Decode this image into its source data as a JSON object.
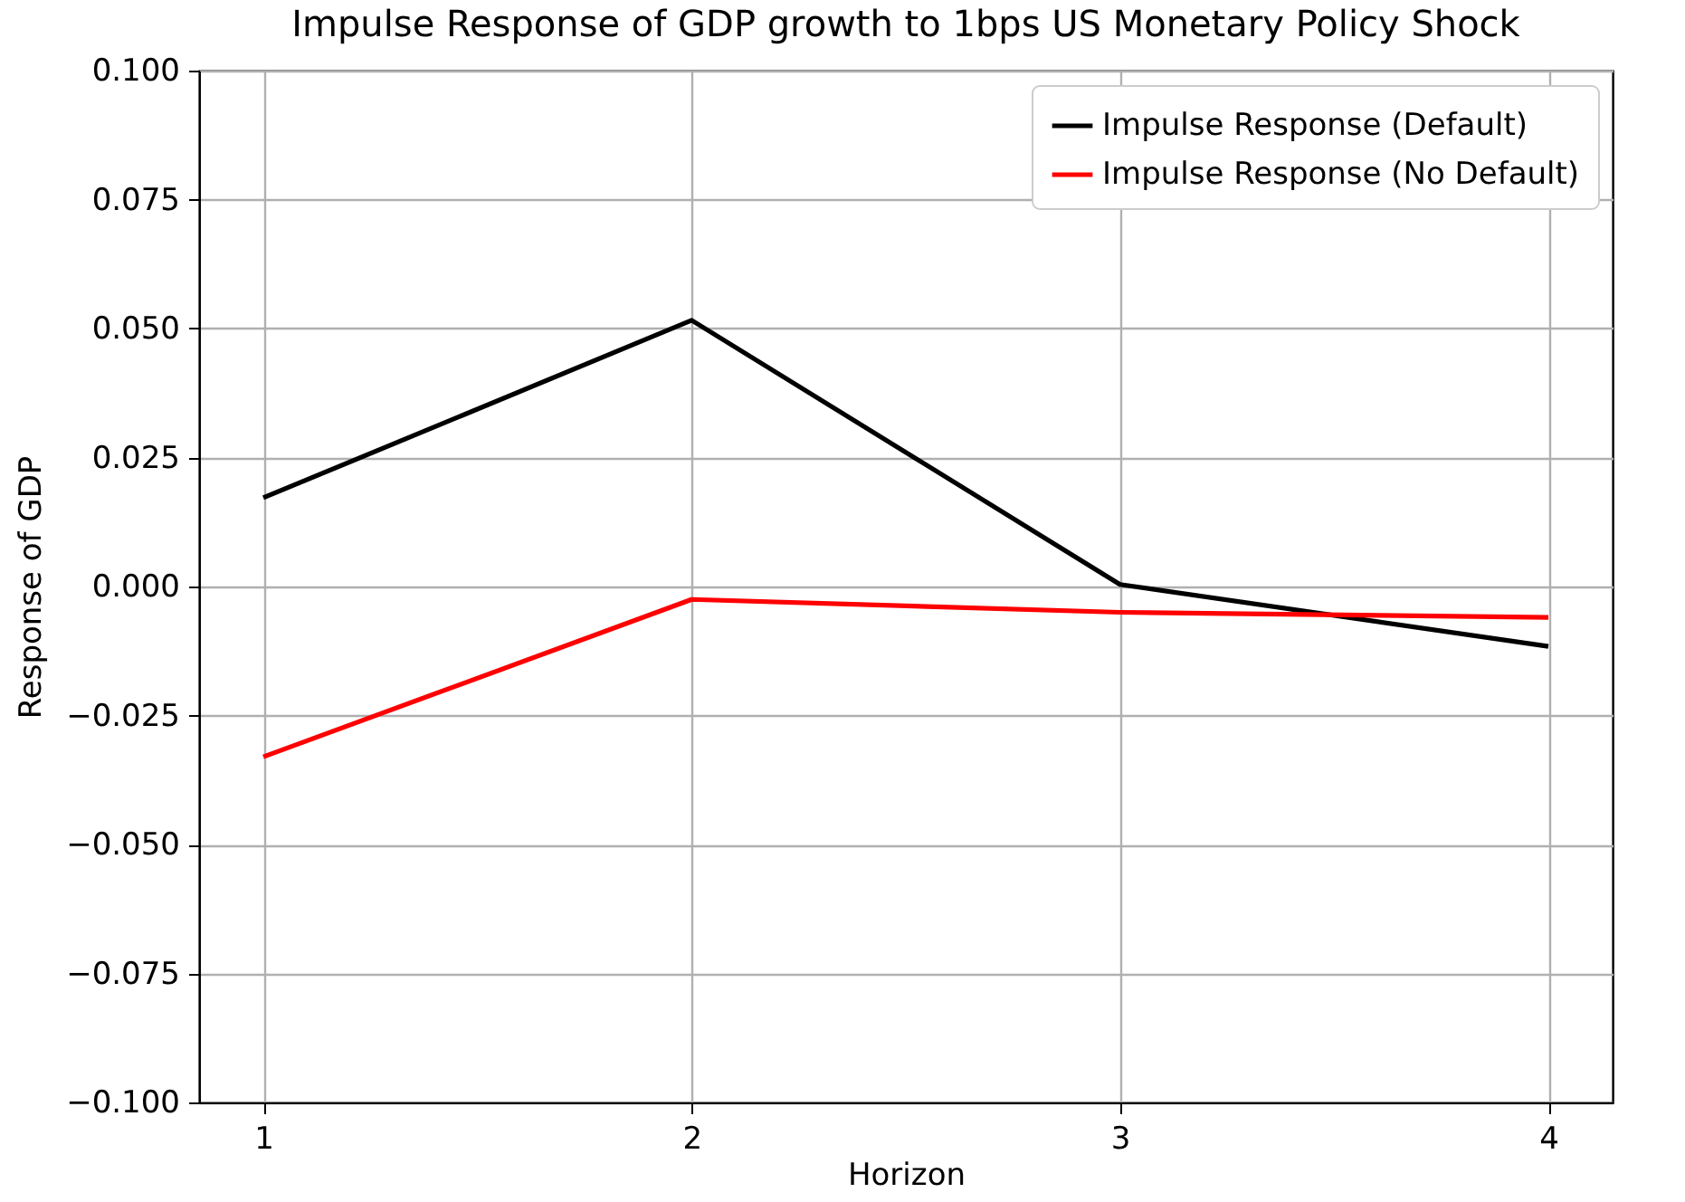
{
  "chart_data": {
    "type": "line",
    "title": "Impulse Response of GDP growth to 1bps US Monetary Policy Shock",
    "xlabel": "Horizon",
    "ylabel": "Response of GDP",
    "x": [
      1,
      2,
      3,
      4
    ],
    "series": [
      {
        "name": "Impulse Response (Default)",
        "color": "#000000",
        "values": [
          0.0172,
          0.0516,
          0.0004,
          -0.0116
        ]
      },
      {
        "name": "Impulse Response (No Default)",
        "color": "#ff0000",
        "values": [
          -0.033,
          -0.0025,
          -0.005,
          -0.006
        ]
      }
    ],
    "xlim": [
      0.85,
      4.15
    ],
    "xticks": [
      1,
      2,
      3,
      4
    ],
    "ylim": [
      -0.1,
      0.1
    ],
    "yticks": [
      {
        "value": -0.1,
        "label": "−0.100"
      },
      {
        "value": -0.075,
        "label": "−0.075"
      },
      {
        "value": -0.05,
        "label": "−0.050"
      },
      {
        "value": -0.025,
        "label": "−0.025"
      },
      {
        "value": 0,
        "label": "0.000"
      },
      {
        "value": 0.025,
        "label": "0.025"
      },
      {
        "value": 0.05,
        "label": "0.050"
      },
      {
        "value": 0.075,
        "label": "0.075"
      },
      {
        "value": 0.1,
        "label": "0.100"
      }
    ],
    "grid": true,
    "legend": "top right",
    "marker": "none",
    "line_style": "solid"
  }
}
